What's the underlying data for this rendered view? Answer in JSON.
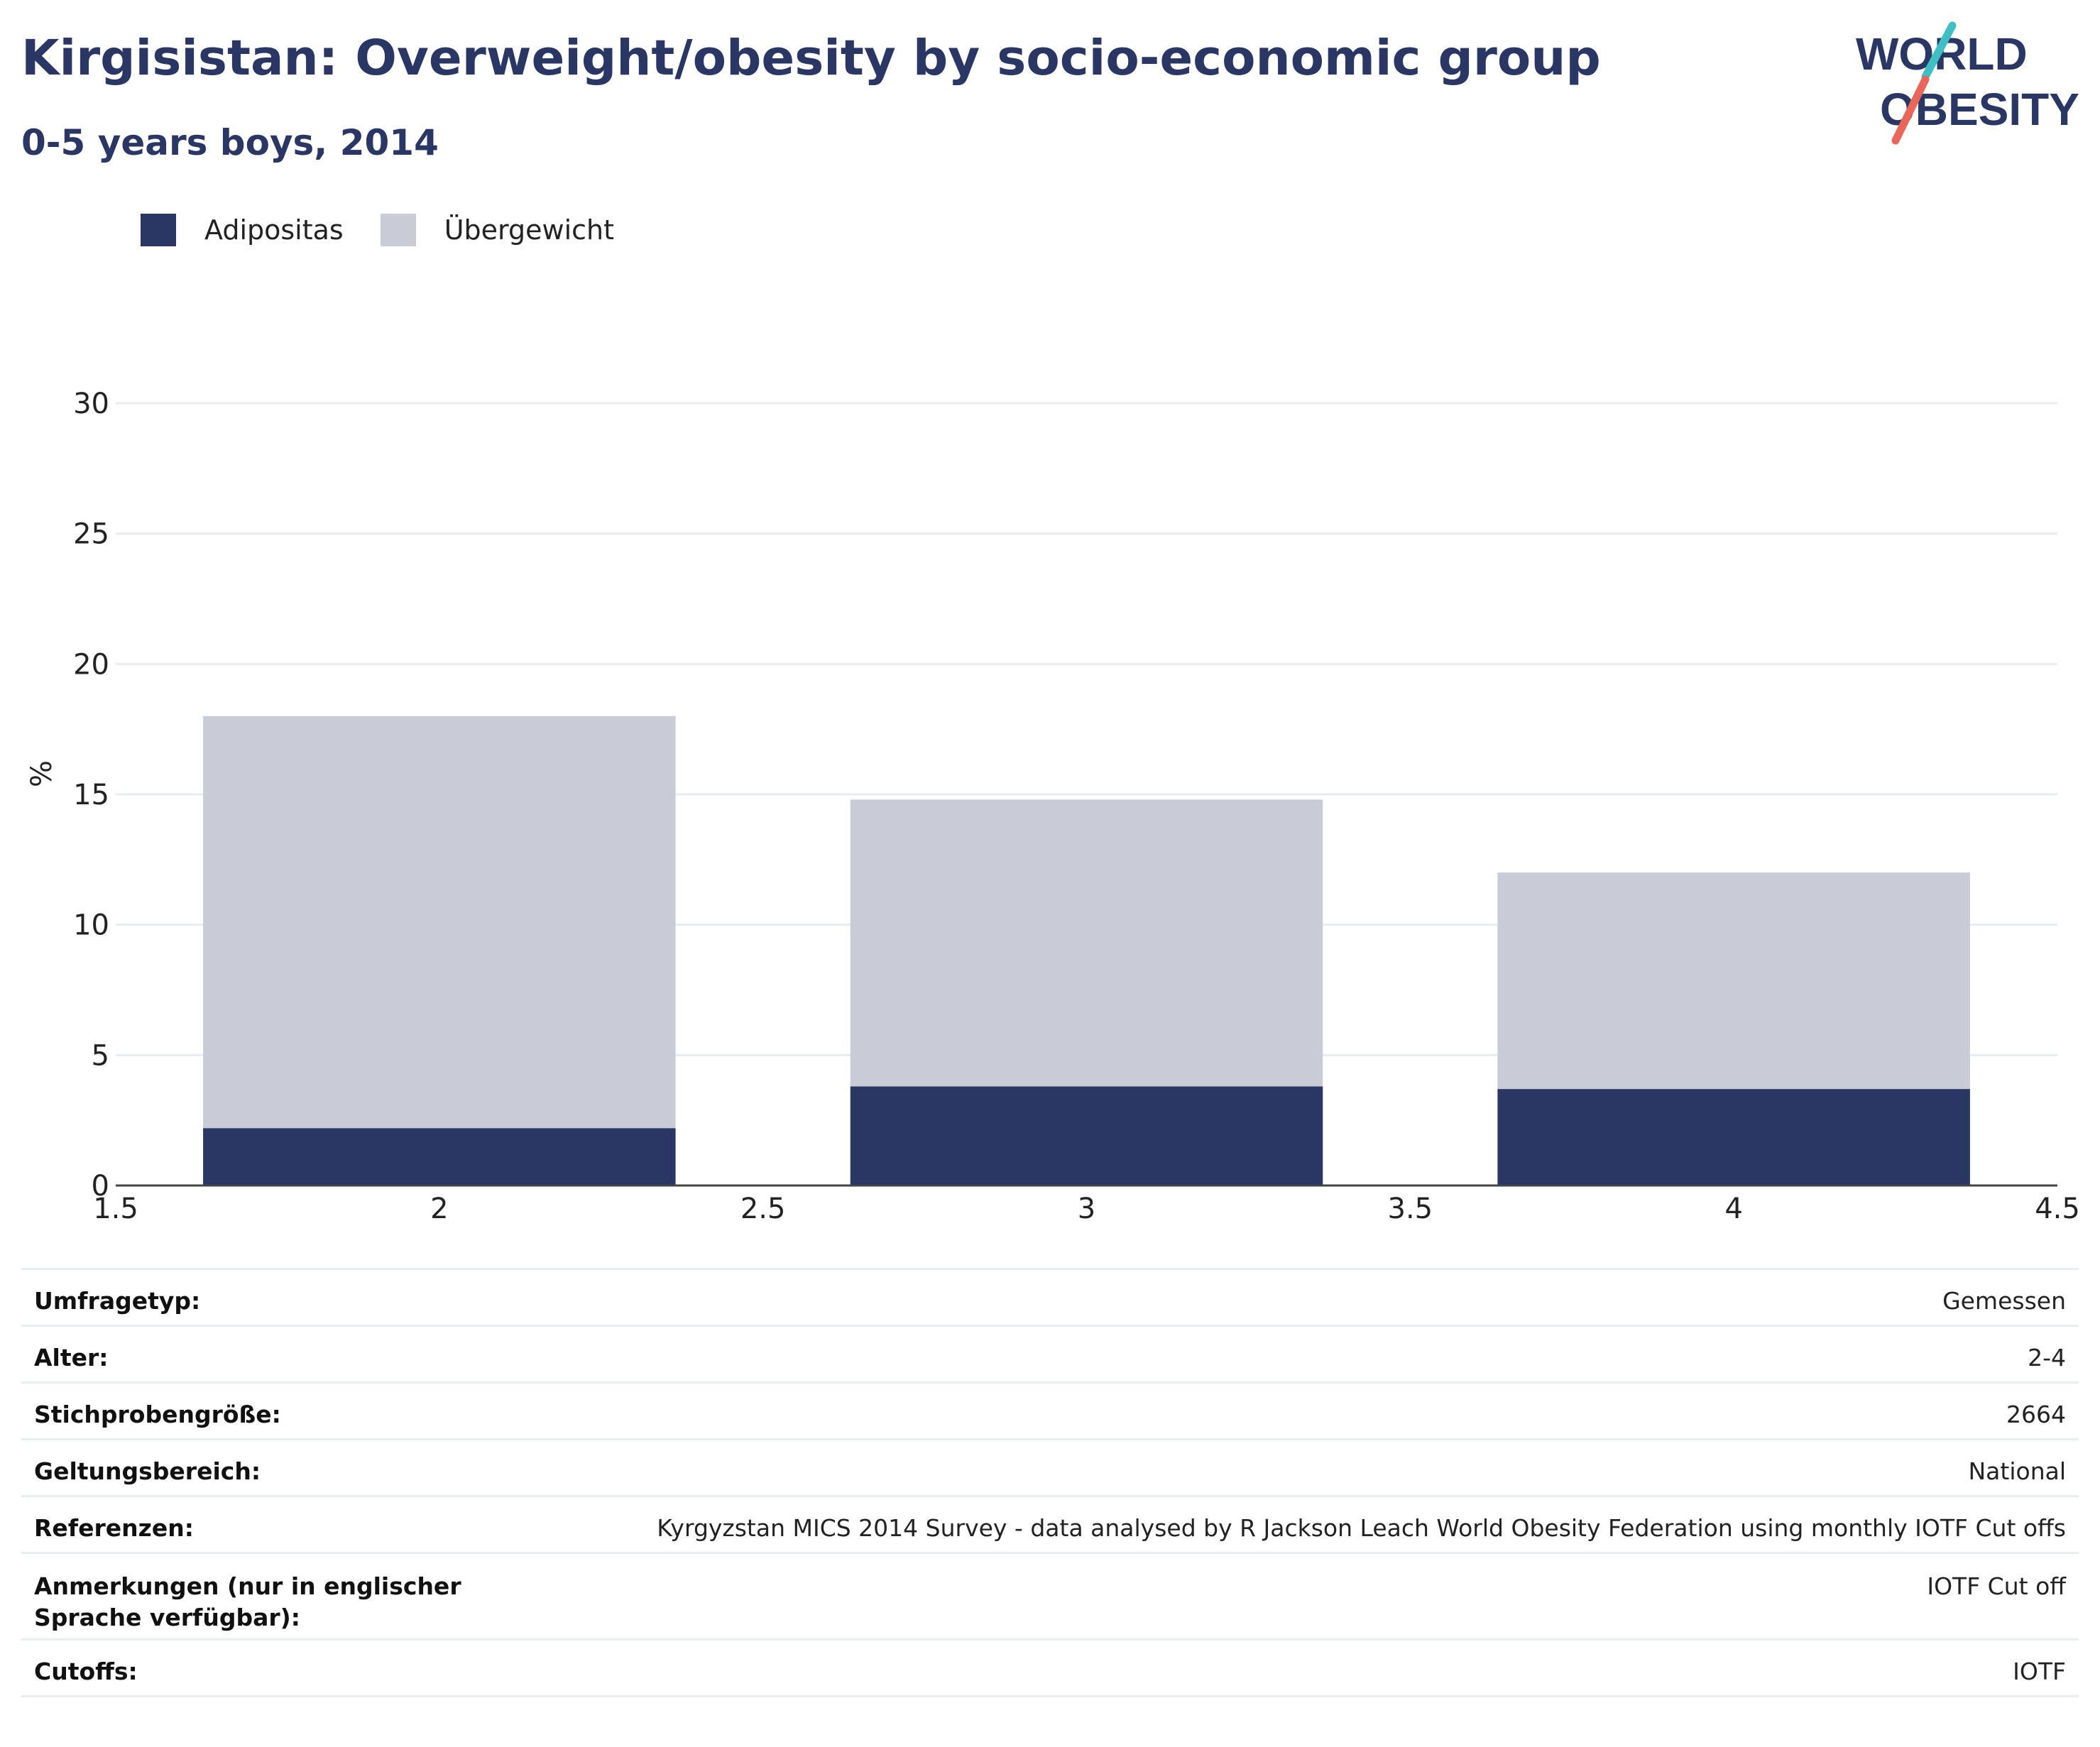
{
  "header": {
    "title": "Kirgisistan: Overweight/obesity by socio-economic group",
    "subtitle": "0-5 years boys, 2014"
  },
  "logo": {
    "line1": "WORLD",
    "line2": "OBESITY",
    "colors": {
      "text": "#2a3663",
      "slash_top": "#3fbfc4",
      "slash_bottom": "#e8665a"
    }
  },
  "legend": [
    {
      "label": "Adipositas",
      "color": "#2a3663"
    },
    {
      "label": "Übergewicht",
      "color": "#c9cbd6"
    }
  ],
  "chart_data": {
    "type": "bar",
    "stacked": true,
    "x": [
      2,
      3,
      4
    ],
    "series": [
      {
        "name": "Adipositas",
        "color": "#2a3663",
        "values": [
          2.2,
          3.8,
          3.7
        ]
      },
      {
        "name": "Übergewicht",
        "color": "#c9cbd6",
        "values": [
          15.8,
          11.0,
          8.3
        ]
      }
    ],
    "totals": [
      18.0,
      14.8,
      12.0
    ],
    "xlim": [
      1.5,
      4.5
    ],
    "xticks": [
      "1.5",
      "2",
      "2.5",
      "3",
      "3.5",
      "4",
      "4.5"
    ],
    "ylim": [
      0,
      30
    ],
    "yticks": [
      "0",
      "5",
      "10",
      "15",
      "20",
      "25",
      "30"
    ],
    "ylabel": "%",
    "grid": true,
    "legend_position": "top-left"
  },
  "info": {
    "rows": [
      {
        "key": "Umfragetyp:",
        "value": "Gemessen"
      },
      {
        "key": "Alter:",
        "value": "2-4"
      },
      {
        "key": "Stichprobengröße:",
        "value": "2664"
      },
      {
        "key": "Geltungsbereich:",
        "value": "National"
      },
      {
        "key": "Referenzen:",
        "value": "Kyrgyzstan MICS 2014 Survey - data analysed by R Jackson Leach World Obesity Federation using monthly IOTF Cut offs"
      },
      {
        "key": "Anmerkungen (nur in englischer Sprache verfügbar):",
        "value": "IOTF Cut off"
      },
      {
        "key": "Cutoffs:",
        "value": "IOTF"
      }
    ]
  }
}
